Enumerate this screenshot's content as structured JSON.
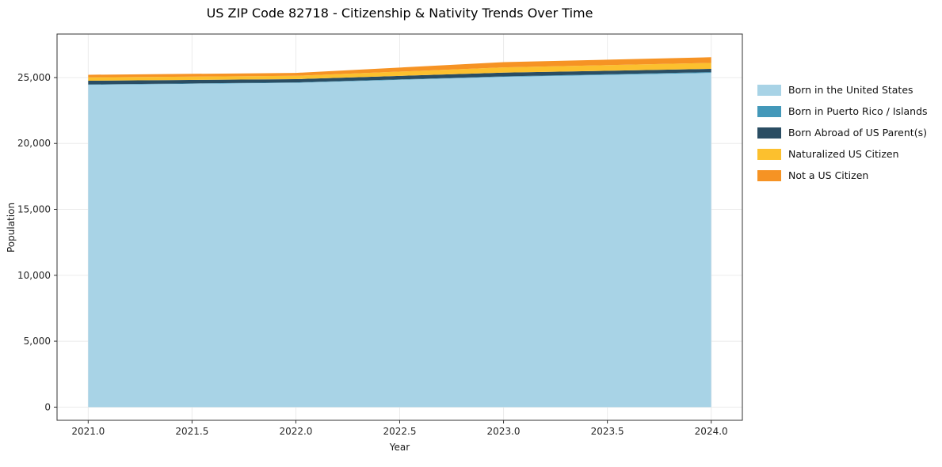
{
  "chart_data": {
    "type": "area",
    "stacked": true,
    "title": "US ZIP Code 82718 - Citizenship & Nativity Trends Over Time",
    "xlabel": "Year",
    "ylabel": "Population",
    "x": [
      2021,
      2022,
      2023,
      2024
    ],
    "series": [
      {
        "name": "Born in the United States",
        "color": "#a8d3e6",
        "values": [
          24450,
          24600,
          25050,
          25350
        ]
      },
      {
        "name": "Born in Puerto Rico / Islands",
        "color": "#4398b9",
        "values": [
          30,
          30,
          40,
          60
        ]
      },
      {
        "name": "Born Abroad of US Parent(s)",
        "color": "#2a4d63",
        "values": [
          280,
          250,
          280,
          250
        ]
      },
      {
        "name": "Naturalized US Citizen",
        "color": "#fcc02e",
        "values": [
          250,
          250,
          400,
          450
        ]
      },
      {
        "name": "Not a US Citizen",
        "color": "#f69324",
        "values": [
          200,
          220,
          400,
          430
        ]
      }
    ],
    "xlim": [
      2020.85,
      2024.15
    ],
    "ylim": [
      -1000,
      28300
    ],
    "xticks": [
      {
        "v": 2021.0,
        "label": "2021.0"
      },
      {
        "v": 2021.5,
        "label": "2021.5"
      },
      {
        "v": 2022.0,
        "label": "2022.0"
      },
      {
        "v": 2022.5,
        "label": "2022.5"
      },
      {
        "v": 2023.0,
        "label": "2023.0"
      },
      {
        "v": 2023.5,
        "label": "2023.5"
      },
      {
        "v": 2024.0,
        "label": "2024.0"
      }
    ],
    "yticks": [
      {
        "v": 0,
        "label": "0"
      },
      {
        "v": 5000,
        "label": "5,000"
      },
      {
        "v": 10000,
        "label": "10,000"
      },
      {
        "v": 15000,
        "label": "15,000"
      },
      {
        "v": 20000,
        "label": "20,000"
      },
      {
        "v": 25000,
        "label": "25,000"
      }
    ],
    "grid": true,
    "legend_position": "right"
  }
}
